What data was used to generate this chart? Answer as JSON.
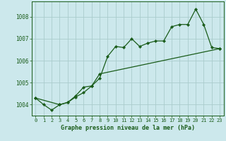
{
  "title": "Graphe pression niveau de la mer (hPa)",
  "background_color": "#cce8ec",
  "grid_color": "#aacccc",
  "line_color": "#1a5c1a",
  "marker_color": "#1a5c1a",
  "xlim": [
    -0.5,
    23.5
  ],
  "ylim": [
    1003.5,
    1008.7
  ],
  "yticks": [
    1004,
    1005,
    1006,
    1007,
    1008
  ],
  "xticks": [
    0,
    1,
    2,
    3,
    4,
    5,
    6,
    7,
    8,
    9,
    10,
    11,
    12,
    13,
    14,
    15,
    16,
    17,
    18,
    19,
    20,
    21,
    22,
    23
  ],
  "series1_x": [
    0,
    1,
    2,
    3,
    4,
    5,
    6,
    7,
    8,
    9,
    10,
    11,
    12,
    13,
    14,
    15,
    16,
    17,
    18,
    19,
    20,
    21,
    22,
    23
  ],
  "series1_y": [
    1004.3,
    1004.0,
    1003.75,
    1004.0,
    1004.1,
    1004.35,
    1004.55,
    1004.85,
    1005.2,
    1006.2,
    1006.65,
    1006.6,
    1007.0,
    1006.65,
    1006.8,
    1006.9,
    1006.9,
    1007.55,
    1007.65,
    1007.65,
    1008.35,
    1007.65,
    1006.6,
    1006.55
  ],
  "series2_x": [
    0,
    3,
    4,
    5,
    6,
    7,
    8,
    23
  ],
  "series2_y": [
    1004.3,
    1004.0,
    1004.1,
    1004.4,
    1004.8,
    1004.85,
    1005.4,
    1006.55
  ]
}
